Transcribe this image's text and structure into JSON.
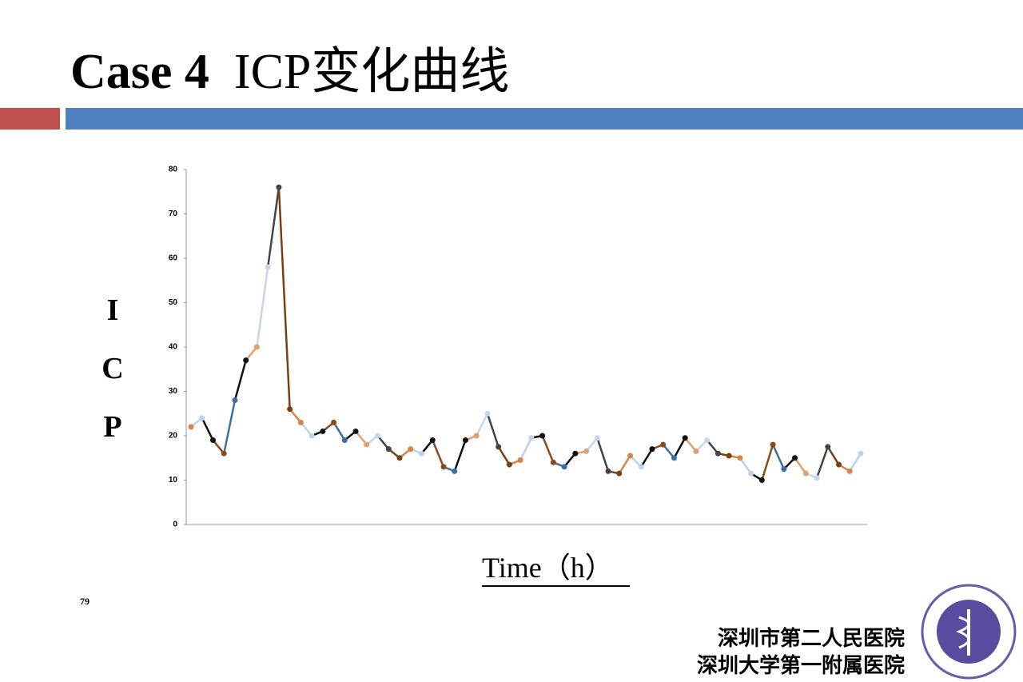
{
  "title_bold": "Case 4",
  "title_rest": "ICP变化曲线",
  "page_number": "79",
  "hospital_lines": [
    "深圳市第二人民医院",
    "深圳大学第一附属医院"
  ],
  "chart_data": {
    "type": "line",
    "y_label": "ICP",
    "x_label": "Time（h）",
    "ylim": [
      0,
      80
    ],
    "yticks": [
      0,
      10,
      20,
      30,
      40,
      50,
      60,
      70,
      80
    ],
    "palette": [
      "#d7844a",
      "#bcd3ea",
      "#111111",
      "#8b4a1c",
      "#3d6fa6",
      "#111111",
      "#e0a070",
      "#c3d7ec",
      "#444444",
      "#7a3f14"
    ],
    "values": [
      22,
      24,
      19,
      16,
      28,
      37,
      40,
      58,
      76,
      26,
      23,
      20,
      21,
      23,
      19,
      21,
      18,
      20,
      17,
      15,
      17,
      16,
      19,
      13,
      12,
      19,
      20,
      25,
      17.5,
      13.5,
      14.5,
      19.5,
      20,
      14,
      13,
      16,
      16.5,
      19.5,
      12,
      11.5,
      15.5,
      13,
      17,
      18,
      15,
      19.5,
      16.5,
      19,
      16,
      15.5,
      15,
      11.5,
      10,
      18,
      12.5,
      15,
      11.5,
      10.5,
      17.5,
      13.5,
      12,
      16
    ]
  }
}
